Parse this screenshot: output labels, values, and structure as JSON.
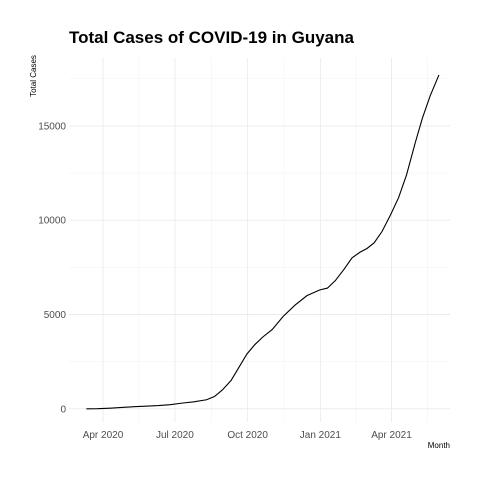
{
  "chart_data": {
    "type": "line",
    "title": "Total Cases of COVID-19 in Guyana",
    "xlabel": "Month",
    "ylabel": "Total Cases",
    "x_tick_labels": [
      "Apr 2020",
      "Jul 2020",
      "Oct 2020",
      "Jan 2021",
      "Apr 2021"
    ],
    "x_tick_dates": [
      "2020-04-01",
      "2020-07-01",
      "2020-10-01",
      "2021-01-01",
      "2021-04-01"
    ],
    "y_ticks": [
      0,
      5000,
      10000,
      15000
    ],
    "y_tick_labels": [
      "0",
      "5000",
      "10000",
      "15000"
    ],
    "xlim": [
      "2020-02-18",
      "2021-06-14"
    ],
    "ylim": [
      -700,
      18600
    ],
    "grid": true,
    "legend": "none",
    "series": [
      {
        "color": "#000000",
        "x": [
          "2020-03-11",
          "2020-03-25",
          "2020-04-10",
          "2020-04-25",
          "2020-05-10",
          "2020-05-25",
          "2020-06-10",
          "2020-06-25",
          "2020-07-10",
          "2020-07-25",
          "2020-08-10",
          "2020-08-20",
          "2020-08-30",
          "2020-09-10",
          "2020-09-20",
          "2020-09-30",
          "2020-10-10",
          "2020-10-20",
          "2020-11-01",
          "2020-11-15",
          "2020-11-30",
          "2020-12-15",
          "2020-12-31",
          "2021-01-10",
          "2021-01-20",
          "2021-01-31",
          "2021-02-10",
          "2021-02-20",
          "2021-03-01",
          "2021-03-10",
          "2021-03-20",
          "2021-03-31",
          "2021-04-10",
          "2021-04-20",
          "2021-05-01",
          "2021-05-10",
          "2021-05-20",
          "2021-05-31"
        ],
        "y": [
          1,
          8,
          35,
          70,
          110,
          140,
          170,
          220,
          300,
          370,
          480,
          650,
          1000,
          1500,
          2200,
          2900,
          3400,
          3800,
          4200,
          4900,
          5500,
          6000,
          6300,
          6400,
          6800,
          7400,
          8000,
          8300,
          8500,
          8800,
          9400,
          10300,
          11200,
          12400,
          14100,
          15400,
          16600,
          17700
        ]
      }
    ]
  }
}
